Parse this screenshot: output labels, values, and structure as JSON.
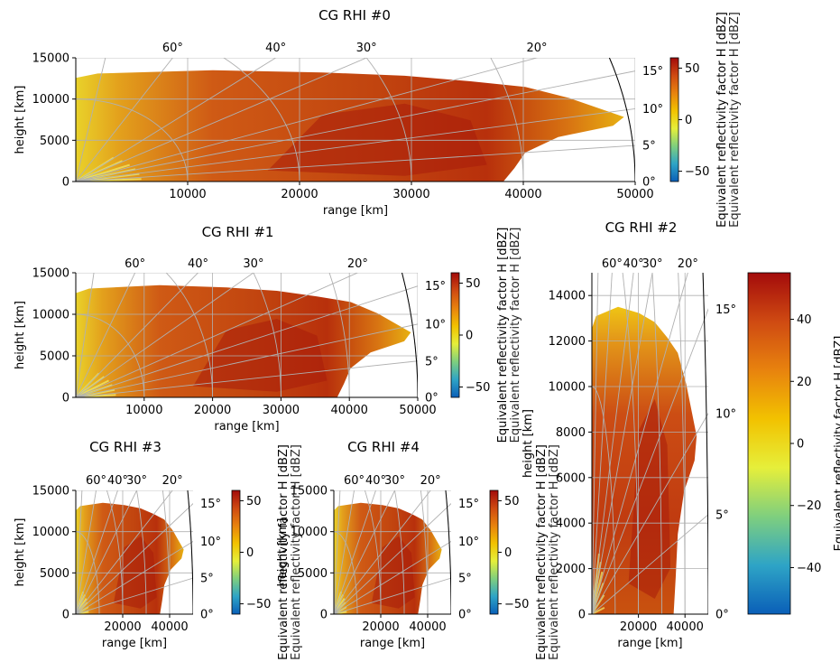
{
  "figure": {
    "cbar_label": "Equivalent reflectivity factor H [dBZ]",
    "cbar_label_overlap": "Equivalent reflectivity factor H [dBZ]",
    "colormap_stops": [
      "#0a5fb8",
      "#2ea4c6",
      "#7fcf7e",
      "#e6ef3a",
      "#f2c200",
      "#e8830e",
      "#cf4a12",
      "#a30b0b"
    ],
    "grid_color": "#b0b0b0",
    "elevation_ticks": [
      "60°",
      "40°",
      "30°",
      "20°"
    ],
    "right_elevation_ticks": [
      "0°",
      "5°",
      "10°",
      "15°"
    ]
  },
  "chart_data": [
    {
      "type": "heatmap",
      "title": "CG RHI #0",
      "xlabel": "range [km]",
      "ylabel": "height [km]",
      "xlim": [
        0,
        50000
      ],
      "ylim": [
        0,
        15000
      ],
      "xticks": [
        "10000",
        "20000",
        "30000",
        "40000",
        "50000"
      ],
      "yticks": [
        "0",
        "5000",
        "10000",
        "15000"
      ],
      "elevation_ticks": [
        "60°",
        "40°",
        "30°",
        "20°"
      ],
      "right_ticks": [
        "0°",
        "5°",
        "10°",
        "15°"
      ],
      "cbar_ticks": [
        "−50",
        "0",
        "50"
      ],
      "cbar_range": [
        -60,
        60
      ],
      "echo_top_km": 13500,
      "echo_max_range_km": 49000
    },
    {
      "type": "heatmap",
      "title": "CG RHI #1",
      "xlabel": "range [km]",
      "ylabel": "height [km]",
      "xlim": [
        0,
        50000
      ],
      "ylim": [
        0,
        15000
      ],
      "xticks": [
        "10000",
        "20000",
        "30000",
        "40000",
        "50000"
      ],
      "yticks": [
        "0",
        "5000",
        "10000",
        "15000"
      ],
      "elevation_ticks": [
        "60°",
        "40°",
        "30°",
        "20°"
      ],
      "right_ticks": [
        "0°",
        "5°",
        "10°",
        "15°"
      ],
      "cbar_ticks": [
        "−50",
        "0",
        "50"
      ],
      "cbar_range": [
        -60,
        60
      ],
      "echo_top_km": 13500,
      "echo_max_range_km": 49000
    },
    {
      "type": "heatmap",
      "title": "CG RHI #2",
      "xlabel": "range [km]",
      "ylabel": "height [km]",
      "xlim": [
        0,
        50000
      ],
      "ylim": [
        0,
        15000
      ],
      "xticks": [
        "20000",
        "40000"
      ],
      "yticks": [
        "0",
        "2000",
        "4000",
        "6000",
        "8000",
        "10000",
        "12000",
        "14000"
      ],
      "elevation_ticks": [
        "60°",
        "40°",
        "30°",
        "20°"
      ],
      "right_ticks": [
        "0°",
        "5°",
        "10°",
        "15°"
      ],
      "cbar_ticks": [
        "−40",
        "−20",
        "0",
        "20",
        "40"
      ],
      "cbar_range": [
        -55,
        55
      ],
      "echo_top_km": 13500,
      "echo_max_range_km": 45000
    },
    {
      "type": "heatmap",
      "title": "CG RHI #3",
      "xlabel": "range [km]",
      "ylabel": "height [km]",
      "xlim": [
        0,
        50000
      ],
      "ylim": [
        0,
        15000
      ],
      "xticks": [
        "20000",
        "40000"
      ],
      "yticks": [
        "0",
        "5000",
        "10000",
        "15000"
      ],
      "elevation_ticks": [
        "60°",
        "40°",
        "30°",
        "20°"
      ],
      "right_ticks": [
        "0°",
        "5°",
        "10°",
        "15°"
      ],
      "cbar_ticks": [
        "−50",
        "0",
        "50"
      ],
      "cbar_range": [
        -60,
        60
      ],
      "echo_top_km": 13500,
      "echo_max_range_km": 46000
    },
    {
      "type": "heatmap",
      "title": "CG RHI #4",
      "xlabel": "range [km]",
      "ylabel": "height [km]",
      "xlim": [
        0,
        50000
      ],
      "ylim": [
        0,
        15000
      ],
      "xticks": [
        "20000",
        "40000"
      ],
      "yticks": [
        "0",
        "5000",
        "10000",
        "15000"
      ],
      "elevation_ticks": [
        "60°",
        "40°",
        "30°",
        "20°"
      ],
      "right_ticks": [
        "0°",
        "5°",
        "10°",
        "15°"
      ],
      "cbar_ticks": [
        "−50",
        "0",
        "50"
      ],
      "cbar_range": [
        -60,
        60
      ],
      "echo_top_km": 13500,
      "echo_max_range_km": 46000
    }
  ]
}
